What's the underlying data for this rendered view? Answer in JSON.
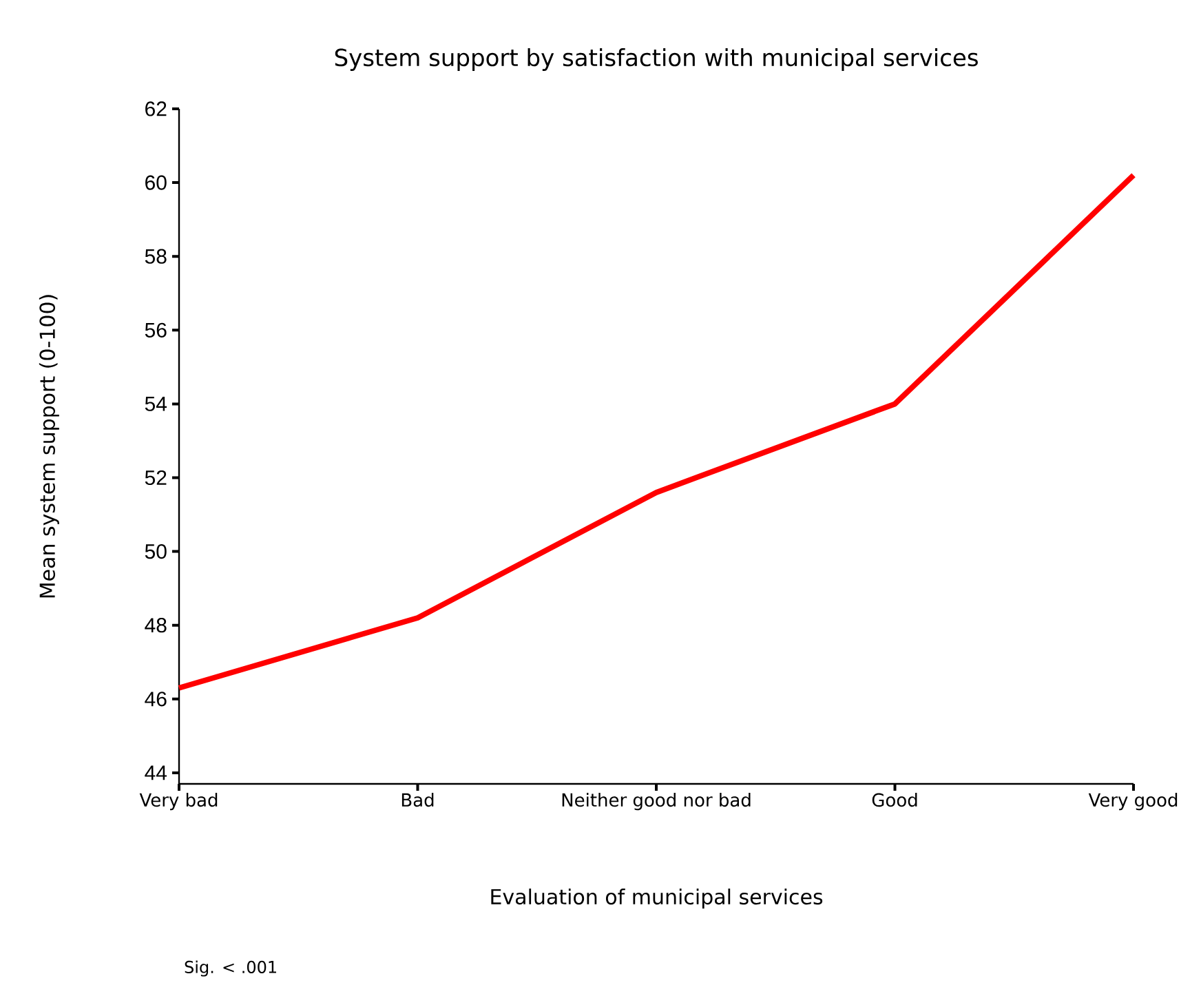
{
  "chart_data": {
    "type": "line",
    "title": "System support by satisfaction with municipal services",
    "xlabel": "Evaluation of municipal services",
    "ylabel": "Mean system support (0-100)",
    "categories": [
      "Very bad",
      "Bad",
      "Neither good nor bad",
      "Good",
      "Very good"
    ],
    "series": [
      {
        "color": "#ff0000",
        "values": [
          46.3,
          48.2,
          51.6,
          54.0,
          60.2
        ]
      }
    ],
    "ylim": [
      43.7,
      62
    ],
    "yticks": [
      44,
      46,
      48,
      50,
      52,
      54,
      56,
      58,
      60,
      62
    ],
    "grid": false,
    "marker": "none",
    "line_style": "solid",
    "annotations": [
      "Sig. < .001"
    ]
  }
}
